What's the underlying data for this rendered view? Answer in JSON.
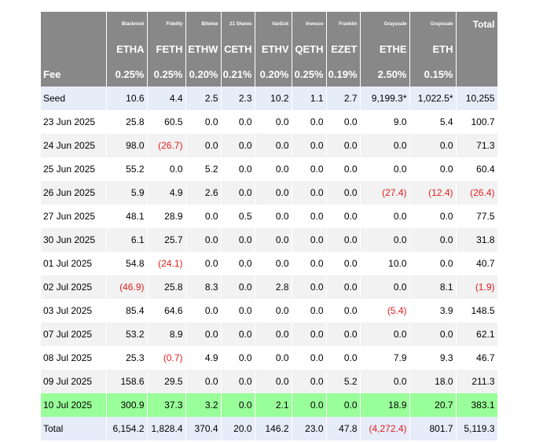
{
  "chart_data": {
    "type": "table",
    "columns": [
      {
        "issuer": "Blackrock",
        "ticker": "ETHA",
        "fee": "0.25%"
      },
      {
        "issuer": "Fidelity",
        "ticker": "FETH",
        "fee": "0.25%"
      },
      {
        "issuer": "Bitwise",
        "ticker": "ETHW",
        "fee": "0.20%"
      },
      {
        "issuer": "21 Shares",
        "ticker": "CETH",
        "fee": "0.21%"
      },
      {
        "issuer": "VanEck",
        "ticker": "ETHV",
        "fee": "0.20%"
      },
      {
        "issuer": "Invesco",
        "ticker": "QETH",
        "fee": "0.25%"
      },
      {
        "issuer": "Franklin",
        "ticker": "EZET",
        "fee": "0.19%"
      },
      {
        "issuer": "Grayscale",
        "ticker": "ETHE",
        "fee": "2.50%"
      },
      {
        "issuer": "Grayscale",
        "ticker": "ETH",
        "fee": "0.15%"
      }
    ],
    "total_header": "Total",
    "fee_label": "Fee",
    "rows": [
      {
        "label": "Seed",
        "values": [
          "10.6",
          "4.4",
          "2.5",
          "2.3",
          "10.2",
          "1.1",
          "2.7",
          "9,199.3*",
          "1,022.5*",
          "10,255"
        ],
        "style": "seed"
      },
      {
        "label": "23 Jun 2025",
        "values": [
          "25.8",
          "60.5",
          "0.0",
          "0.0",
          "0.0",
          "0.0",
          "0.0",
          "9.0",
          "5.4",
          "100.7"
        ],
        "style": "plain"
      },
      {
        "label": "24 Jun 2025",
        "values": [
          "98.0",
          "(26.7)",
          "0.0",
          "0.0",
          "0.0",
          "0.0",
          "0.0",
          "0.0",
          "0.0",
          "71.3"
        ],
        "style": "alt"
      },
      {
        "label": "25 Jun 2025",
        "values": [
          "55.2",
          "0.0",
          "5.2",
          "0.0",
          "0.0",
          "0.0",
          "0.0",
          "0.0",
          "0.0",
          "60.4"
        ],
        "style": "plain"
      },
      {
        "label": "26 Jun 2025",
        "values": [
          "5.9",
          "4.9",
          "2.6",
          "0.0",
          "0.0",
          "0.0",
          "0.0",
          "(27.4)",
          "(12.4)",
          "(26.4)"
        ],
        "style": "alt"
      },
      {
        "label": "27 Jun 2025",
        "values": [
          "48.1",
          "28.9",
          "0.0",
          "0.5",
          "0.0",
          "0.0",
          "0.0",
          "0.0",
          "0.0",
          "77.5"
        ],
        "style": "plain"
      },
      {
        "label": "30 Jun 2025",
        "values": [
          "6.1",
          "25.7",
          "0.0",
          "0.0",
          "0.0",
          "0.0",
          "0.0",
          "0.0",
          "0.0",
          "31.8"
        ],
        "style": "alt"
      },
      {
        "label": "01 Jul 2025",
        "values": [
          "54.8",
          "(24.1)",
          "0.0",
          "0.0",
          "0.0",
          "0.0",
          "0.0",
          "10.0",
          "0.0",
          "40.7"
        ],
        "style": "plain"
      },
      {
        "label": "02 Jul 2025",
        "values": [
          "(46.9)",
          "25.8",
          "8.3",
          "0.0",
          "2.8",
          "0.0",
          "0.0",
          "0.0",
          "8.1",
          "(1.9)"
        ],
        "style": "alt"
      },
      {
        "label": "03 Jul 2025",
        "values": [
          "85.4",
          "64.6",
          "0.0",
          "0.0",
          "0.0",
          "0.0",
          "0.0",
          "(5.4)",
          "3.9",
          "148.5"
        ],
        "style": "plain"
      },
      {
        "label": "07 Jul 2025",
        "values": [
          "53.2",
          "8.9",
          "0.0",
          "0.0",
          "0.0",
          "0.0",
          "0.0",
          "0.0",
          "0.0",
          "62.1"
        ],
        "style": "alt"
      },
      {
        "label": "08 Jul 2025",
        "values": [
          "25.3",
          "(0.7)",
          "4.9",
          "0.0",
          "0.0",
          "0.0",
          "0.0",
          "7.9",
          "9.3",
          "46.7"
        ],
        "style": "plain"
      },
      {
        "label": "09 Jul 2025",
        "values": [
          "158.6",
          "29.5",
          "0.0",
          "0.0",
          "0.0",
          "0.0",
          "5.2",
          "0.0",
          "18.0",
          "211.3"
        ],
        "style": "alt"
      },
      {
        "label": "10 Jul 2025",
        "values": [
          "300.9",
          "37.3",
          "3.2",
          "0.0",
          "2.1",
          "0.0",
          "0.0",
          "18.9",
          "20.7",
          "383.1"
        ],
        "style": "hl"
      },
      {
        "label": "Total",
        "values": [
          "6,154.2",
          "1,828.4",
          "370.4",
          "20.0",
          "146.2",
          "23.0",
          "47.8",
          "(4,272.4)",
          "801.7",
          "5,119.3"
        ],
        "style": "total"
      }
    ],
    "colors": {
      "header_bg": "#888888",
      "header_text": "#ffffff",
      "negative_text": "#e11d1d",
      "seed_total_bg": "#e7ecf9",
      "alt_row_bg": "#f2f2f2",
      "highlight_row_bg": "#99ff99"
    }
  }
}
